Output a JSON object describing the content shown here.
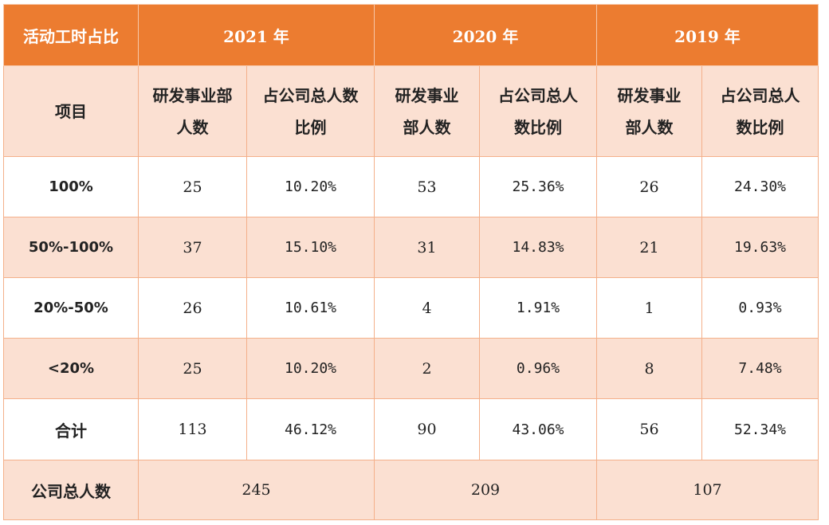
{
  "header": {
    "corner": "活动工时占比",
    "years": [
      "2021 年",
      "2020 年",
      "2019 年"
    ]
  },
  "subheader": {
    "item": "项目",
    "col_a": [
      "研发事业部",
      "人数"
    ],
    "col_b": [
      "占公司总人数",
      "比例"
    ],
    "col_a2": [
      "研发事业",
      "部人数"
    ],
    "col_b2": [
      "占公司总人",
      "数比例"
    ]
  },
  "rows": [
    {
      "label": "100%",
      "y2021_n": "25",
      "y2021_p": "10.20%",
      "y2020_n": "53",
      "y2020_p": "25.36%",
      "y2019_n": "26",
      "y2019_p": "24.30%"
    },
    {
      "label": "50%-100%",
      "y2021_n": "37",
      "y2021_p": "15.10%",
      "y2020_n": "31",
      "y2020_p": "14.83%",
      "y2019_n": "21",
      "y2019_p": "19.63%"
    },
    {
      "label": "20%-50%",
      "y2021_n": "26",
      "y2021_p": "10.61%",
      "y2020_n": "4",
      "y2020_p": "1.91%",
      "y2019_n": "1",
      "y2019_p": "0.93%"
    },
    {
      "label": "<20%",
      "y2021_n": "25",
      "y2021_p": "10.20%",
      "y2020_n": "2",
      "y2020_p": "0.96%",
      "y2019_n": "8",
      "y2019_p": "7.48%"
    },
    {
      "label": "合计",
      "y2021_n": "113",
      "y2021_p": "46.12%",
      "y2020_n": "90",
      "y2020_p": "43.06%",
      "y2019_n": "56",
      "y2019_p": "52.34%"
    }
  ],
  "footer": {
    "label": "公司总人数",
    "y2021": "245",
    "y2020": "209",
    "y2019": "107"
  },
  "colors": {
    "header_bg": "#ec7c30",
    "band_bg": "#fbe0d2",
    "border": "#f4b08a"
  }
}
